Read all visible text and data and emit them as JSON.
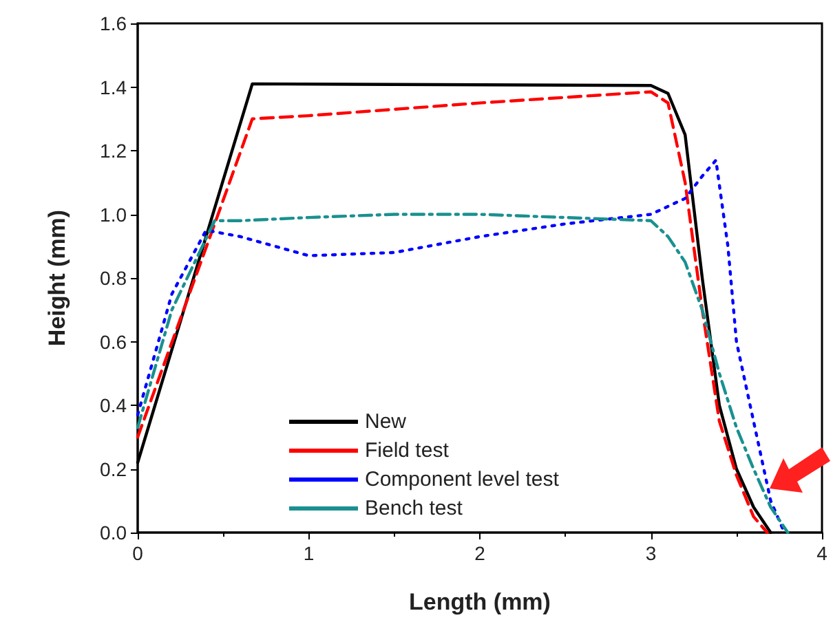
{
  "chart_data": {
    "type": "line",
    "xlabel": "Length (mm)",
    "ylabel": "Height (mm)",
    "xlim": [
      0,
      4
    ],
    "xticks": [
      0,
      1,
      2,
      3,
      4
    ],
    "ylim": [
      0,
      1.6
    ],
    "yticks": [
      {
        "value": 0,
        "label": "0.0"
      },
      {
        "value": 0.2,
        "label": "0.2"
      },
      {
        "value": 0.4,
        "label": "0.4"
      },
      {
        "value": 0.6,
        "label": "0.6"
      },
      {
        "value": 0.8,
        "label": "0.8"
      },
      {
        "value": 1,
        "label": "1.0"
      },
      {
        "value": 1.2,
        "label": "1.2"
      },
      {
        "value": 1.4,
        "label": "1.4"
      },
      {
        "value": 1.6,
        "label": "1.6"
      }
    ],
    "grid": false,
    "legend": "bottom",
    "marker": "none",
    "series": [
      {
        "name": "New",
        "color": "#000000",
        "line_style": "solid",
        "x": [
          0,
          0.67,
          3.0,
          3.1,
          3.2,
          3.3,
          3.4,
          3.5,
          3.6,
          3.7
        ],
        "values": [
          0.22,
          1.41,
          1.405,
          1.38,
          1.25,
          0.8,
          0.4,
          0.2,
          0.08,
          0
        ]
      },
      {
        "name": "Field test",
        "color": "#ff0000",
        "line_style": "dashed",
        "x": [
          0,
          0.45,
          0.67,
          1,
          2,
          3,
          3.1,
          3.2,
          3.3,
          3.4,
          3.5,
          3.6,
          3.68
        ],
        "values": [
          0.3,
          0.97,
          1.3,
          1.31,
          1.35,
          1.385,
          1.35,
          1.1,
          0.7,
          0.35,
          0.18,
          0.05,
          0
        ]
      },
      {
        "name": "Component level test",
        "color": "#0000ff",
        "line_style": "dotted",
        "x": [
          0,
          0.2,
          0.4,
          0.6,
          1,
          1.5,
          2,
          2.5,
          3,
          3.2,
          3.3,
          3.38,
          3.45,
          3.5,
          3.6,
          3.7,
          3.78
        ],
        "values": [
          0.37,
          0.75,
          0.95,
          0.93,
          0.87,
          0.88,
          0.93,
          0.97,
          1.0,
          1.05,
          1.12,
          1.17,
          0.9,
          0.6,
          0.35,
          0.1,
          0
        ]
      },
      {
        "name": "Bench test",
        "color": "#1a9090",
        "line_style": "dashdot",
        "x": [
          0,
          0.2,
          0.45,
          0.6,
          1,
          1.5,
          2,
          2.5,
          3,
          3.1,
          3.2,
          3.3,
          3.4,
          3.5,
          3.6,
          3.7,
          3.8
        ],
        "values": [
          0.33,
          0.7,
          0.98,
          0.98,
          0.99,
          1.0,
          1.0,
          0.99,
          0.98,
          0.93,
          0.85,
          0.7,
          0.5,
          0.33,
          0.2,
          0.08,
          0
        ]
      }
    ]
  }
}
